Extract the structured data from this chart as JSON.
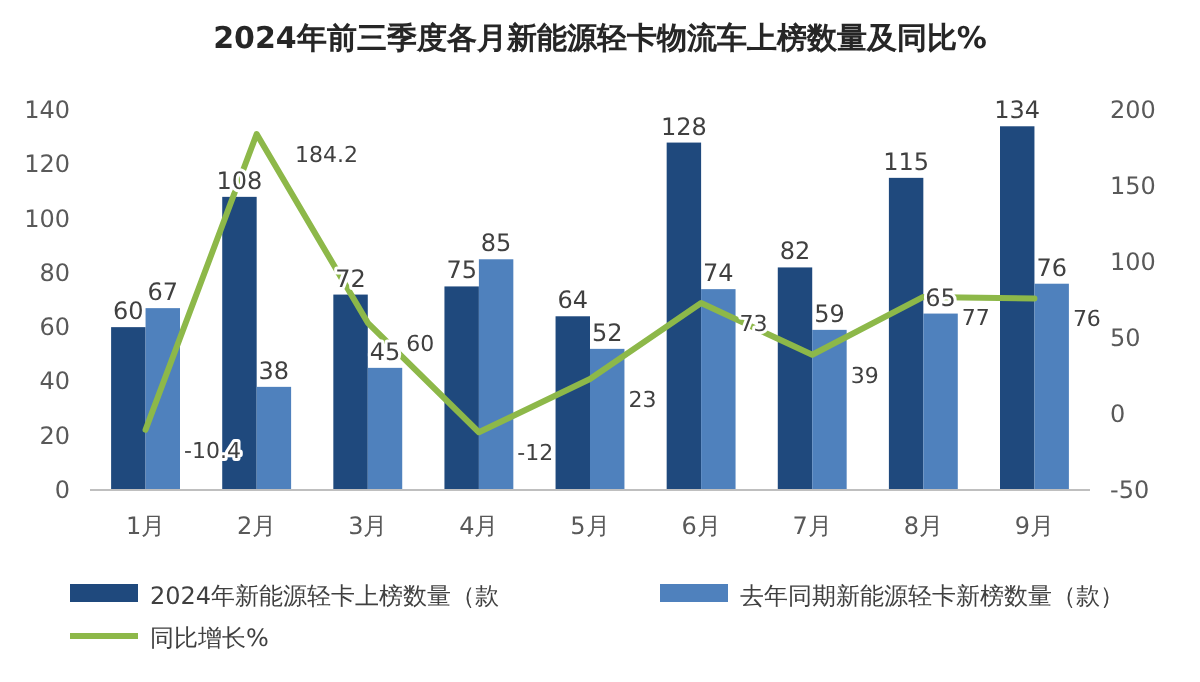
{
  "chart_data": {
    "type": "bar",
    "title": "2024年前三季度各月新能源轻卡物流车上榜数量及同比%",
    "categories": [
      "1月",
      "2月",
      "3月",
      "4月",
      "5月",
      "6月",
      "7月",
      "8月",
      "9月"
    ],
    "series": [
      {
        "name": "2024年新能源轻卡上榜数量（款",
        "color": "#1f497d",
        "values": [
          60,
          108,
          72,
          75,
          64,
          128,
          82,
          115,
          134
        ]
      },
      {
        "name": "去年同期新能源轻卡新榜数量（款）",
        "color": "#4f81bd",
        "values": [
          67,
          38,
          45,
          85,
          52,
          74,
          59,
          65,
          76
        ]
      },
      {
        "name": "同比增长%",
        "type": "line",
        "axis": "y2",
        "color": "#8db849",
        "values": [
          -10.4,
          184.2,
          60,
          -12,
          23,
          73,
          39,
          77,
          76
        ]
      }
    ],
    "ylim": [
      0,
      140
    ],
    "yticks": [
      0,
      20,
      40,
      60,
      80,
      100,
      120,
      140
    ],
    "y2lim": [
      -50,
      200
    ],
    "y2ticks": [
      -50,
      0,
      50,
      100,
      150,
      200
    ],
    "data_labels": true,
    "legend": "bottom",
    "grid": false,
    "marker": "none",
    "line_style": "solid"
  }
}
